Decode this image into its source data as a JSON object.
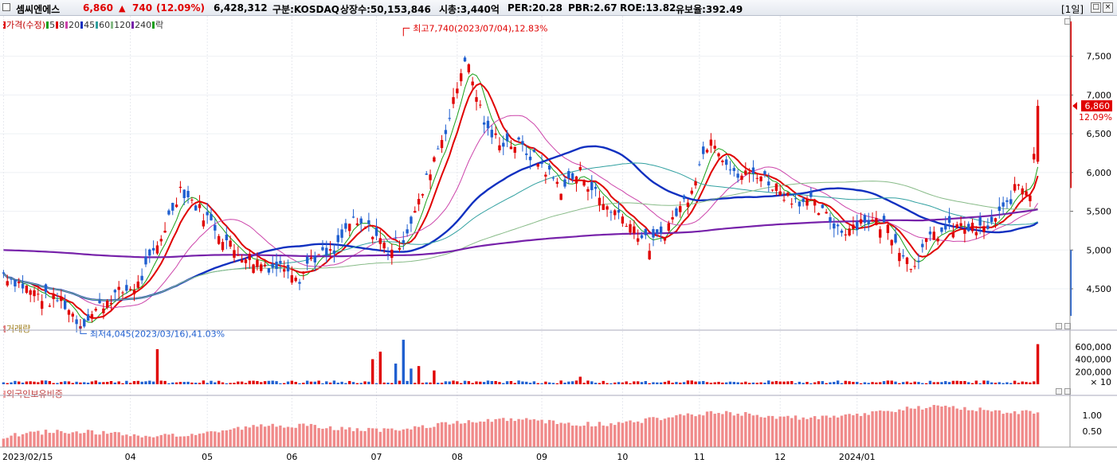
{
  "header": {
    "stock_name": "셈씨엔에스",
    "price": "6,860",
    "change_arrow": "▲",
    "change": "740",
    "change_pct": "(12.09%)",
    "volume": "6,428,312",
    "market_label": "구분:KOSDAQ",
    "shares_label": "상장수:50,153,846",
    "mktcap_label": "시총:3,440억",
    "per_label": "PER:20.28",
    "pbr_label": "PBR:2.67",
    "roe_label": "ROE:13.82",
    "float_label": "유보율:392.49",
    "period_button": "[1일]",
    "window_button_1": "□",
    "window_button_2": "×"
  },
  "colors": {
    "up": "#e00000",
    "down": "#1f5fd0",
    "ma5": "#19a019",
    "ma20": "#cc44aa",
    "ma45": "#1030c0",
    "ma60": "#30a0a0",
    "ma120": "#88bb88",
    "ma240": "#7722aa",
    "price_bg": "#e00000"
  },
  "price_legend": [
    {
      "label": "가격(수정)",
      "color": "#e00000"
    },
    {
      "label": "5",
      "color": "#19a019"
    },
    {
      "label": "8",
      "color": "#e00000"
    },
    {
      "label": "20",
      "color": "#cc44aa"
    },
    {
      "label": "45",
      "color": "#1030c0"
    },
    {
      "label": "60",
      "color": "#30a0a0"
    },
    {
      "label": "120",
      "color": "#88bb88"
    },
    {
      "label": "240",
      "color": "#7722aa"
    },
    {
      "label": "락",
      "color": "#19a019"
    }
  ],
  "volume_panel": {
    "title": "거래량",
    "ticks": [
      "600,000",
      "400,000",
      "200,000"
    ],
    "unit": "× 10"
  },
  "foreign_panel": {
    "title": "외국인보유비중",
    "ticks": [
      "1.00",
      "0.50"
    ]
  },
  "x_axis": [
    "2023/02/15",
    "04",
    "05",
    "06",
    "07",
    "08",
    "09",
    "10",
    "11",
    "12",
    "2024/01"
  ],
  "price_axis": [
    "7,500",
    "7,000",
    "6,500",
    "6,000",
    "5,500",
    "5,000",
    "4,500"
  ],
  "current_price_tag": "6,860",
  "current_pct_tag": "12.09%",
  "annotations": {
    "high": "최고7,740(2023/07/04),12.83%",
    "low": "최저4,045(2023/03/16),41.03%"
  },
  "chart_data": {
    "type": "candlestick",
    "price_range": [
      4100,
      8000
    ],
    "anchors": {
      "t": [
        0,
        8,
        12,
        15,
        20,
        28,
        35,
        40,
        46,
        55,
        60,
        66,
        70,
        74,
        77,
        80,
        86,
        90,
        96,
        100,
        104,
        108,
        112,
        116,
        120,
        126,
        130,
        134,
        140,
        145,
        150,
        156,
        162,
        168,
        172,
        178,
        184,
        190,
        196,
        204,
        210,
        218,
        224,
        230,
        236,
        242,
        248,
        255,
        260,
        264,
        267,
        269
      ],
      "close": [
        4700,
        4450,
        4350,
        4360,
        4045,
        4400,
        4550,
        5050,
        5800,
        5300,
        5000,
        4850,
        4780,
        4800,
        4650,
        4900,
        4950,
        5350,
        5250,
        5000,
        5150,
        5600,
        6200,
        6700,
        7500,
        6500,
        6400,
        6350,
        6100,
        5800,
        6000,
        5600,
        5400,
        5050,
        5250,
        5700,
        6500,
        5950,
        6000,
        5700,
        5600,
        5250,
        5400,
        5300,
        4800,
        5200,
        5300,
        5250,
        5500,
        5850,
        5750,
        6860
      ]
    },
    "volume_spikes": {
      "40": 560000,
      "96": 400000,
      "98": 520000,
      "102": 330000,
      "104": 710000,
      "106": 250000,
      "108": 290000,
      "112": 220000,
      "150": 120000,
      "269": 640000
    },
    "volume_range": [
      0,
      800000
    ],
    "foreign_range": [
      0,
      1.5
    ],
    "moving_averages": [
      5,
      8,
      20,
      45,
      60,
      120,
      240
    ],
    "month_starts": [
      0,
      33,
      53,
      75,
      97,
      118,
      140,
      161,
      181,
      202,
      222
    ],
    "high": {
      "price": 7740,
      "date": "2023/07/04"
    },
    "low": {
      "price": 4045,
      "date": "2023/03/16"
    }
  }
}
